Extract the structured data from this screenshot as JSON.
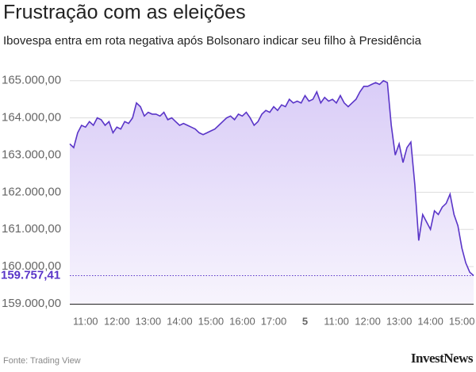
{
  "chart_data": {
    "type": "line",
    "title": "Frustração com as eleições",
    "subtitle": "Ibovespa entra em rota negativa após Bolsonaro indicar seu filho à Presidência",
    "source": "Fonte: Trading View",
    "brand": "InvestNews",
    "categories": [
      null,
      null,
      null,
      null,
      "11:00",
      null,
      null,
      null,
      null,
      null,
      null,
      null,
      "12:00",
      null,
      null,
      null,
      null,
      null,
      null,
      null,
      "13:00",
      null,
      null,
      null,
      null,
      null,
      null,
      null,
      "14:00",
      null,
      null,
      null,
      null,
      null,
      null,
      null,
      "15:00",
      null,
      null,
      null,
      null,
      null,
      null,
      null,
      "16:00",
      null,
      null,
      null,
      null,
      null,
      null,
      null,
      "17:00",
      null,
      null,
      null,
      null,
      null,
      null,
      null,
      "5",
      null,
      null,
      null,
      null,
      null,
      null,
      null,
      "11:00",
      null,
      null,
      null,
      null,
      null,
      null,
      null,
      "12:00",
      null,
      null,
      null,
      null,
      null,
      null,
      null,
      "13:00",
      null,
      null,
      null,
      null,
      null,
      null,
      null,
      "14:00",
      null,
      null,
      null,
      null,
      null,
      null,
      null,
      "15:00",
      null,
      null,
      null
    ],
    "series": [
      {
        "name": "Ibovespa",
        "color": "#5a35c8",
        "values": [
          163300,
          163200,
          163600,
          163800,
          163750,
          163900,
          163800,
          164000,
          163950,
          163800,
          163900,
          163600,
          163750,
          163700,
          163900,
          163850,
          164000,
          164400,
          164300,
          164050,
          164150,
          164100,
          164100,
          164050,
          164150,
          163950,
          164000,
          163900,
          163800,
          163850,
          163800,
          163750,
          163700,
          163600,
          163550,
          163600,
          163650,
          163700,
          163800,
          163900,
          164000,
          164050,
          163950,
          164100,
          164050,
          164150,
          164000,
          163800,
          163900,
          164100,
          164200,
          164150,
          164300,
          164200,
          164350,
          164300,
          164500,
          164400,
          164450,
          164400,
          164600,
          164450,
          164500,
          164700,
          164400,
          164550,
          164450,
          164500,
          164400,
          164600,
          164400,
          164300,
          164400,
          164500,
          164700,
          164850,
          164850,
          164900,
          164950,
          164900,
          165000,
          164950,
          163800,
          163000,
          163300,
          162800,
          163200,
          163350,
          162200,
          160700,
          161400,
          161200,
          161000,
          161500,
          161400,
          161600,
          161700,
          161950,
          161400,
          161100,
          160500,
          160100,
          159850,
          159757.41
        ]
      }
    ],
    "last_value": {
      "value": 159757.41,
      "label": "159.757,41"
    },
    "ylim": [
      159000,
      165250
    ],
    "yticks": [
      {
        "value": 159000,
        "label": "159.000,00"
      },
      {
        "value": 160000,
        "label": "160.000,00"
      },
      {
        "value": 161000,
        "label": "161.000,00"
      },
      {
        "value": 162000,
        "label": "162.000,00"
      },
      {
        "value": 163000,
        "label": "163.000,00"
      },
      {
        "value": 164000,
        "label": "164.000,00"
      },
      {
        "value": 165000,
        "label": "165.000,00"
      }
    ],
    "grid": true
  }
}
